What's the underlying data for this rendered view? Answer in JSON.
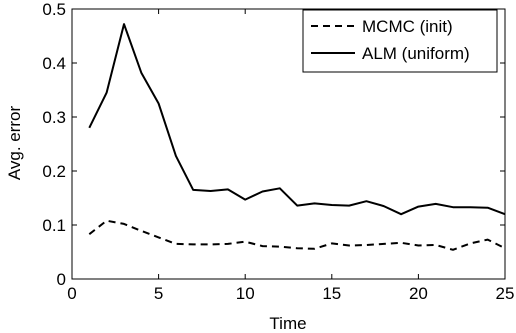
{
  "chart_data": {
    "type": "line",
    "title": "",
    "xlabel": "Time",
    "ylabel": "Avg. error",
    "xlim": [
      0,
      25
    ],
    "ylim": [
      0,
      0.5
    ],
    "x_ticks": [
      "0",
      "5",
      "10",
      "15",
      "20",
      "25"
    ],
    "y_ticks": [
      "0",
      "0.1",
      "0.2",
      "0.3",
      "0.4",
      "0.5"
    ],
    "x": [
      1,
      2,
      3,
      4,
      5,
      6,
      7,
      8,
      9,
      10,
      11,
      12,
      13,
      14,
      15,
      16,
      17,
      18,
      19,
      20,
      21,
      22,
      23,
      24,
      25
    ],
    "grid": false,
    "legend_position": "top-right",
    "series": [
      {
        "name": "MCMC (init)",
        "style": "dashed",
        "color": "#000000",
        "values": [
          0.083,
          0.108,
          0.102,
          0.089,
          0.077,
          0.065,
          0.064,
          0.064,
          0.065,
          0.069,
          0.061,
          0.06,
          0.057,
          0.056,
          0.066,
          0.062,
          0.063,
          0.065,
          0.067,
          0.062,
          0.063,
          0.054,
          0.066,
          0.073,
          0.057
        ]
      },
      {
        "name": "ALM (uniform)",
        "style": "solid",
        "color": "#000000",
        "values": [
          0.28,
          0.345,
          0.472,
          0.382,
          0.325,
          0.228,
          0.165,
          0.163,
          0.166,
          0.147,
          0.162,
          0.168,
          0.136,
          0.14,
          0.137,
          0.136,
          0.144,
          0.135,
          0.12,
          0.134,
          0.139,
          0.133,
          0.133,
          0.132,
          0.12
        ]
      }
    ]
  }
}
